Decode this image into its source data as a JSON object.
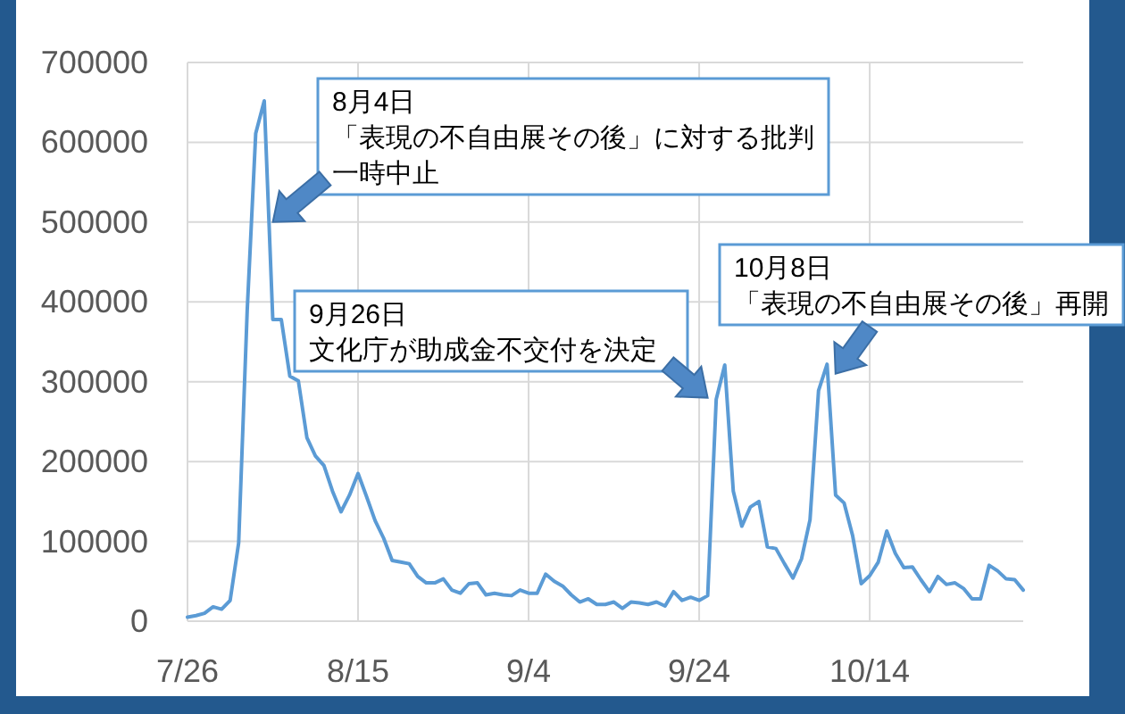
{
  "chart_data": {
    "type": "line",
    "x": [
      "--07-26",
      "--07-27",
      "--07-28",
      "--07-29",
      "--07-30",
      "--07-31",
      "--08-01",
      "--08-02",
      "--08-03",
      "--08-04",
      "--08-05",
      "--08-06",
      "--08-07",
      "--08-08",
      "--08-09",
      "--08-10",
      "--08-11",
      "--08-12",
      "--08-13",
      "--08-14",
      "--08-15",
      "--08-16",
      "--08-17",
      "--08-18",
      "--08-19",
      "--08-20",
      "--08-21",
      "--08-22",
      "--08-23",
      "--08-24",
      "--08-25",
      "--08-26",
      "--08-27",
      "--08-28",
      "--08-29",
      "--08-30",
      "--08-31",
      "--09-01",
      "--09-02",
      "--09-03",
      "--09-04",
      "--09-05",
      "--09-06",
      "--09-07",
      "--09-08",
      "--09-09",
      "--09-10",
      "--09-11",
      "--09-12",
      "--09-13",
      "--09-14",
      "--09-15",
      "--09-16",
      "--09-17",
      "--09-18",
      "--09-19",
      "--09-20",
      "--09-21",
      "--09-22",
      "--09-23",
      "--09-24",
      "--09-25",
      "--09-26",
      "--09-27",
      "--09-28",
      "--09-29",
      "--09-30",
      "--10-01",
      "--10-02",
      "--10-03",
      "--10-04",
      "--10-05",
      "--10-06",
      "--10-07",
      "--10-08",
      "--10-09",
      "--10-10",
      "--10-11",
      "--10-12",
      "--10-13",
      "--10-14",
      "--10-15",
      "--10-16",
      "--10-17",
      "--10-18",
      "--10-19",
      "--10-20",
      "--10-21",
      "--10-22",
      "--10-23",
      "--10-24",
      "--10-25",
      "--10-26",
      "--10-27",
      "--10-28",
      "--10-29",
      "--10-30",
      "--10-31",
      "--11-01"
    ],
    "series": [
      {
        "color": "#5b9bd5",
        "values": [
          5000,
          7000,
          10000,
          18000,
          15000,
          26000,
          98000,
          389000,
          611000,
          652000,
          378000,
          378000,
          307000,
          301000,
          230000,
          207000,
          195000,
          163000,
          137000,
          158000,
          185000,
          156000,
          126000,
          104000,
          76000,
          74000,
          72000,
          56000,
          48000,
          48000,
          53000,
          39000,
          35000,
          47000,
          48000,
          33000,
          35000,
          33000,
          32000,
          39000,
          35000,
          35000,
          59000,
          50000,
          44000,
          33000,
          24000,
          28000,
          21000,
          21000,
          24000,
          16000,
          24000,
          23000,
          21000,
          24000,
          19000,
          37000,
          26000,
          30000,
          26000,
          32000,
          278000,
          321000,
          163000,
          119000,
          143000,
          150000,
          93000,
          91000,
          72000,
          54000,
          78000,
          127000,
          289000,
          322000,
          158000,
          148000,
          107000,
          47000,
          57000,
          74000,
          113000,
          85000,
          67000,
          68000,
          52000,
          37000,
          56000,
          46000,
          48000,
          41000,
          28000,
          28000,
          70000,
          63000,
          53000,
          52000,
          39000
        ]
      }
    ],
    "xlim": [
      "--07-26",
      "--11-01"
    ],
    "xticks": [
      {
        "value": "--07-26",
        "label": "7/26"
      },
      {
        "value": "--08-15",
        "label": "8/15"
      },
      {
        "value": "--09-04",
        "label": "9/4"
      },
      {
        "value": "--09-24",
        "label": "9/24"
      },
      {
        "value": "--10-14",
        "label": "10/14"
      }
    ],
    "ylim": [
      0,
      700000
    ],
    "yticks": [
      0,
      100000,
      200000,
      300000,
      400000,
      500000,
      600000,
      700000
    ],
    "grid": true,
    "annotations": [
      "8月4日",
      "「表現の不自由展その後」に対する批判",
      {
        "text": "一時中止",
        "x": "--08-05",
        "y": 500000
      },
      "9月26日",
      {
        "text": "文化庁が助成金不交付を決定",
        "x": "--09-25",
        "y": 280000
      },
      "10月8日",
      {
        "text": "「表現の不自由展その後」再開",
        "x": "--10-10",
        "y": 310000
      }
    ]
  }
}
